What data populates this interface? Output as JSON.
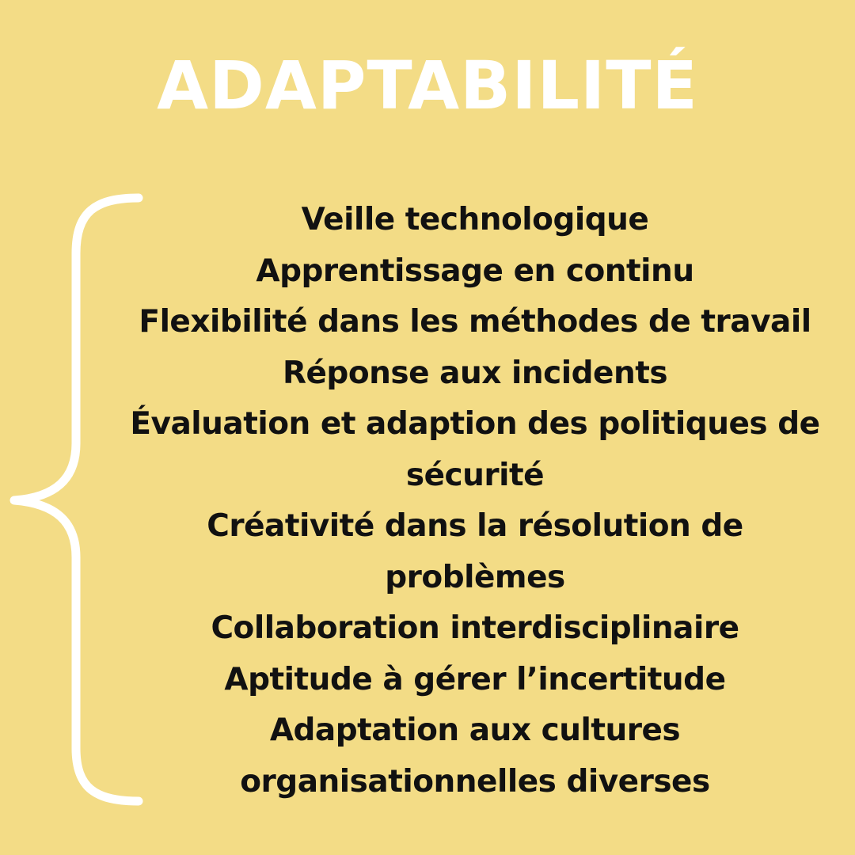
{
  "title": "ADAPTABILITÉ",
  "colors": {
    "background": "#f3dc86",
    "title": "#ffffff",
    "brace": "#ffffff",
    "text": "#111111"
  },
  "items": [
    "Veille technologique",
    "Apprentissage en continu",
    "Flexibilité dans les méthodes de travail",
    "Réponse aux incidents",
    "Évaluation et adaption des politiques de sécurité",
    "Créativité dans la résolution de problèmes",
    "Collaboration interdisciplinaire",
    "Aptitude à gérer l’incertitude",
    "Adaptation aux cultures organisationnelles diverses"
  ]
}
